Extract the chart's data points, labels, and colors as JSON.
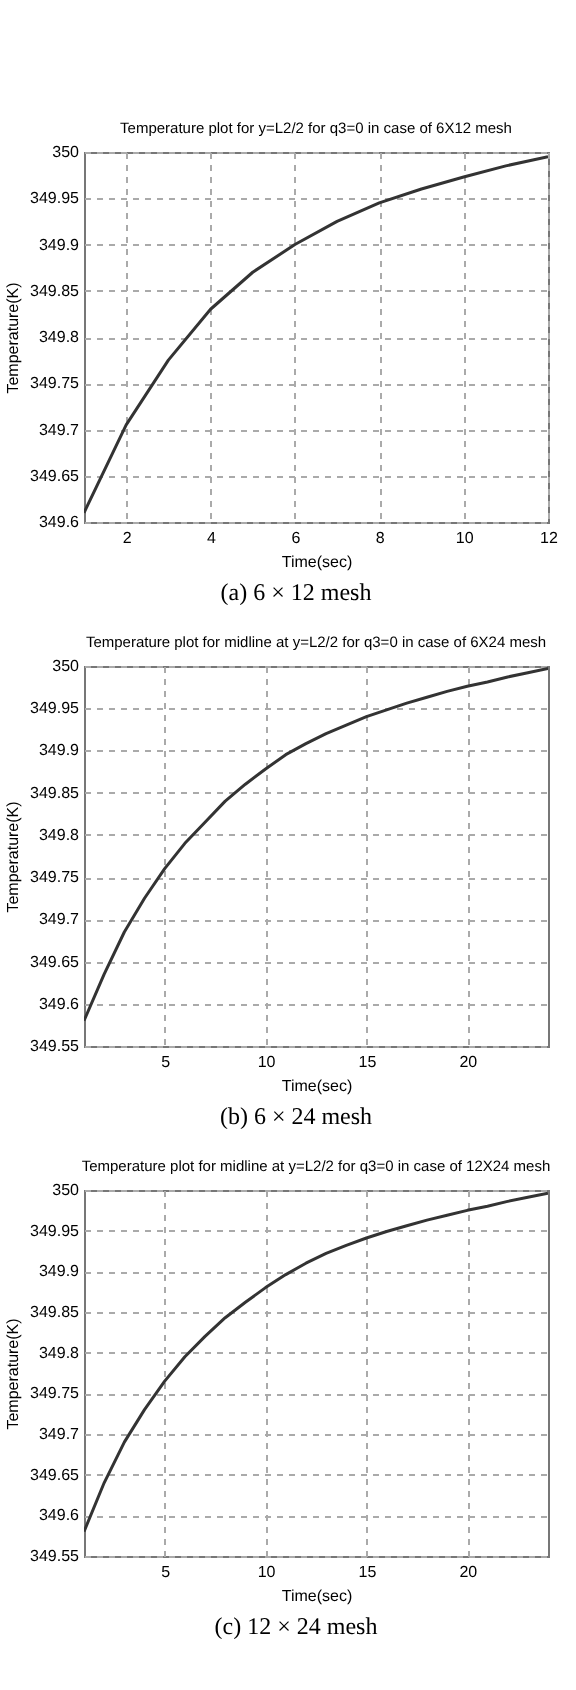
{
  "chart_data": [
    {
      "type": "line",
      "title": "Temperature plot for y=L2/2 for q3=0 in case of 6X12 mesh",
      "xlabel": "Time(sec)",
      "ylabel": "Temperature(K)",
      "annotations": [
        "(a) 6 × 12 mesh"
      ],
      "x": [
        1,
        2,
        3,
        4,
        5,
        6,
        7,
        8,
        9,
        10,
        11,
        12
      ],
      "series": [
        {
          "color": "#333333",
          "values": [
            349.61,
            349.705,
            349.775,
            349.83,
            349.87,
            349.9,
            349.925,
            349.945,
            349.96,
            349.973,
            349.985,
            349.995
          ]
        }
      ],
      "xlim": [
        1,
        12
      ],
      "xticks": [
        2,
        4,
        6,
        8,
        10,
        12
      ],
      "ylim": [
        349.6,
        350
      ],
      "yticks": [
        349.6,
        349.65,
        349.7,
        349.75,
        349.8,
        349.85,
        349.9,
        349.95,
        350
      ],
      "grid": true,
      "line_style": "solid"
    },
    {
      "type": "line",
      "title": "Temperature plot for midline at y=L2/2 for q3=0 in case of 6X24 mesh",
      "xlabel": "Time(sec)",
      "ylabel": "Temperature(K)",
      "annotations": [
        "(b) 6 × 24 mesh"
      ],
      "x": [
        1,
        2,
        3,
        4,
        5,
        6,
        7,
        8,
        9,
        10,
        11,
        12,
        13,
        14,
        15,
        16,
        17,
        18,
        19,
        20,
        21,
        22,
        23,
        24
      ],
      "series": [
        {
          "color": "#333333",
          "values": [
            349.58,
            349.635,
            349.685,
            349.725,
            349.76,
            349.79,
            349.815,
            349.84,
            349.86,
            349.878,
            349.895,
            349.908,
            349.92,
            349.93,
            349.94,
            349.948,
            349.956,
            349.963,
            349.97,
            349.976,
            349.981,
            349.987,
            349.992,
            349.997
          ]
        }
      ],
      "xlim": [
        1,
        24
      ],
      "xticks": [
        5,
        10,
        15,
        20
      ],
      "ylim": [
        349.55,
        350
      ],
      "yticks": [
        349.55,
        349.6,
        349.65,
        349.7,
        349.75,
        349.8,
        349.85,
        349.9,
        349.95,
        350
      ],
      "grid": true,
      "line_style": "solid"
    },
    {
      "type": "line",
      "title": "Temperature plot for midline at y=L2/2 for q3=0 in case of 12X24 mesh",
      "xlabel": "Time(sec)",
      "ylabel": "Temperature(K)",
      "annotations": [
        "(c) 12 × 24 mesh"
      ],
      "x": [
        1,
        2,
        3,
        4,
        5,
        6,
        7,
        8,
        9,
        10,
        11,
        12,
        13,
        14,
        15,
        16,
        17,
        18,
        19,
        20,
        21,
        22,
        23,
        24
      ],
      "series": [
        {
          "color": "#333333",
          "values": [
            349.58,
            349.64,
            349.69,
            349.73,
            349.765,
            349.795,
            349.82,
            349.843,
            349.862,
            349.88,
            349.896,
            349.91,
            349.922,
            349.932,
            349.941,
            349.949,
            349.956,
            349.963,
            349.969,
            349.975,
            349.98,
            349.986,
            349.991,
            349.996
          ]
        }
      ],
      "xlim": [
        1,
        24
      ],
      "xticks": [
        5,
        10,
        15,
        20
      ],
      "ylim": [
        349.55,
        350
      ],
      "yticks": [
        349.55,
        349.6,
        349.65,
        349.7,
        349.75,
        349.8,
        349.85,
        349.9,
        349.95,
        350
      ],
      "grid": true,
      "line_style": "solid"
    }
  ]
}
